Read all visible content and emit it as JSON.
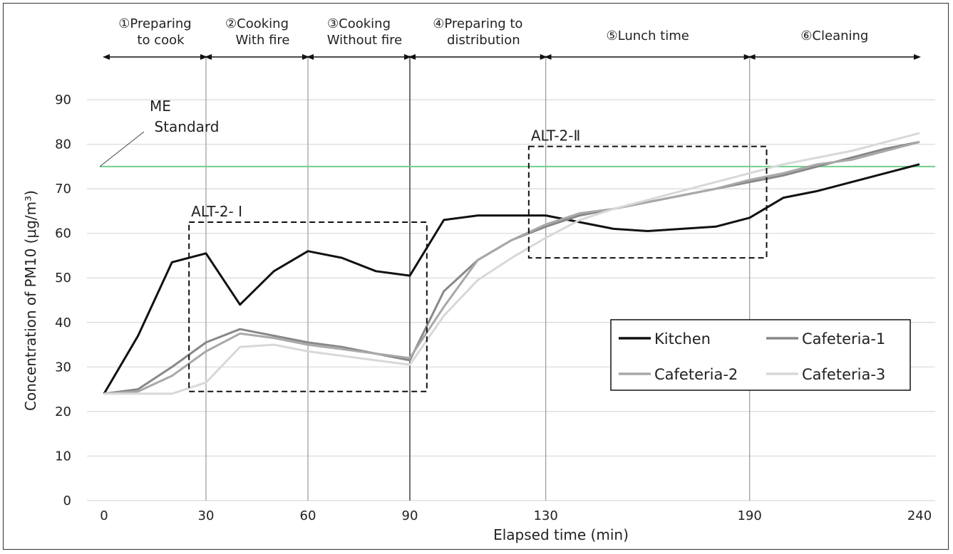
{
  "chart_data": {
    "type": "line",
    "xlabel": "Elapsed time (min)",
    "ylabel": "Concentration of PM10 (μg/m³)",
    "xlim": [
      0,
      240
    ],
    "ylim": [
      0,
      90
    ],
    "x_tick_labels": [
      "0",
      "30",
      "60",
      "90",
      "130",
      "190",
      "240"
    ],
    "y_tick_labels": [
      "0",
      "10",
      "20",
      "30",
      "40",
      "50",
      "60",
      "70",
      "80",
      "90"
    ],
    "grid": "horizontal",
    "legend_position": "lower-right",
    "phases": [
      {
        "num": "①",
        "lines": [
          "Preparing",
          "to cook"
        ],
        "start": 0,
        "end": 30
      },
      {
        "num": "②",
        "lines": [
          "Cooking",
          "With fire"
        ],
        "start": 30,
        "end": 60
      },
      {
        "num": "③",
        "lines": [
          "Cooking",
          "Without fire"
        ],
        "start": 60,
        "end": 90
      },
      {
        "num": "④",
        "lines": [
          "Preparing to",
          "distribution"
        ],
        "start": 90,
        "end": 130
      },
      {
        "num": "⑤",
        "lines": [
          "Lunch time"
        ],
        "start": 130,
        "end": 190
      },
      {
        "num": "⑥",
        "lines": [
          "Cleaning"
        ],
        "start": 190,
        "end": 240
      }
    ],
    "standard": {
      "label_line1": "ME",
      "label_line2": "Standard",
      "value": 75,
      "color": "#6fcf8b"
    },
    "boxes": [
      {
        "label": "ALT-2- Ⅰ",
        "x0": 25,
        "x1": 95,
        "y0": 24.5,
        "y1": 62.5
      },
      {
        "label": "ALT-2-Ⅱ",
        "x0": 125,
        "x1": 195,
        "y0": 54.5,
        "y1": 79.5
      }
    ],
    "x": [
      0,
      10,
      20,
      30,
      40,
      50,
      60,
      70,
      80,
      90,
      100,
      110,
      120,
      130,
      140,
      150,
      160,
      170,
      180,
      190,
      200,
      210,
      220,
      230,
      240
    ],
    "series": [
      {
        "name": "Kitchen",
        "color": "#111111",
        "width": 3,
        "values": [
          24,
          37,
          53.5,
          55.5,
          44,
          51.5,
          56,
          54.5,
          51.5,
          50.5,
          63,
          64,
          64,
          64,
          62.5,
          61,
          60.5,
          61,
          61.5,
          63.5,
          68,
          69.5,
          71.5,
          73.5,
          75.5
        ]
      },
      {
        "name": "Cafeteria-1",
        "color": "#888888",
        "width": 3,
        "values": [
          24,
          25,
          30,
          35.5,
          38.5,
          37,
          35.5,
          34.5,
          33,
          31.5,
          47,
          54,
          58.5,
          61.5,
          64,
          65.5,
          67,
          68.5,
          70,
          71.5,
          73,
          75,
          77,
          79,
          80.5
        ]
      },
      {
        "name": "Cafeteria-2",
        "color": "#a8a8a8",
        "width": 3,
        "values": [
          24,
          24.5,
          28,
          33.5,
          37.5,
          36.5,
          35,
          34,
          33,
          32,
          43.5,
          54,
          58.5,
          62,
          64.5,
          65.5,
          67,
          68.5,
          70,
          72,
          73.5,
          75.5,
          76.5,
          78.5,
          80.5
        ]
      },
      {
        "name": "Cafeteria-3",
        "color": "#d8d8d8",
        "width": 3,
        "values": [
          24,
          24,
          24,
          26.5,
          34.5,
          35,
          33.5,
          32.5,
          31.5,
          30.5,
          41.5,
          49.5,
          54.5,
          59,
          63,
          65.5,
          67.5,
          69.5,
          71.5,
          73.5,
          75.5,
          77,
          78.5,
          80.5,
          82.5
        ]
      }
    ]
  }
}
